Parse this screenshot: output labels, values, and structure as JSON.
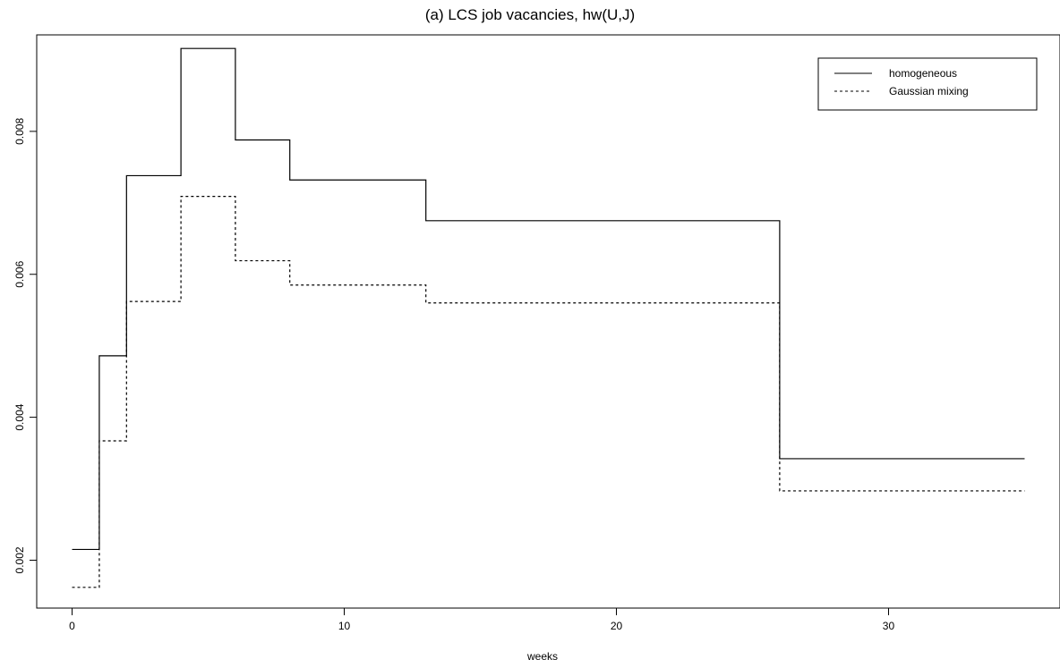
{
  "chart_data": {
    "type": "line",
    "title": "(a) LCS job vacancies, hw(U,J)",
    "xlabel": "weeks",
    "ylabel": "",
    "xlim": [
      -1.3,
      36.3
    ],
    "ylim": [
      0.00133,
      0.00935
    ],
    "x_ticks": [
      0,
      10,
      20,
      30
    ],
    "x_tick_labels": [
      "0",
      "10",
      "20",
      "30"
    ],
    "y_ticks": [
      0.002,
      0.004,
      0.006,
      0.008
    ],
    "y_tick_labels": [
      "0.002",
      "0.004",
      "0.006",
      "0.008"
    ],
    "grid": false,
    "legend_position": "top-right",
    "series": [
      {
        "name": "homogeneous",
        "style": "solid",
        "color": "#000000",
        "steps": [
          {
            "x0": 0,
            "x1": 1,
            "y": 0.00215
          },
          {
            "x0": 1,
            "x1": 2,
            "y": 0.00486
          },
          {
            "x0": 2,
            "x1": 4,
            "y": 0.00738
          },
          {
            "x0": 4,
            "x1": 6,
            "y": 0.00916
          },
          {
            "x0": 6,
            "x1": 8,
            "y": 0.00788
          },
          {
            "x0": 8,
            "x1": 13,
            "y": 0.00732
          },
          {
            "x0": 13,
            "x1": 26,
            "y": 0.00675
          },
          {
            "x0": 26,
            "x1": 35,
            "y": 0.00342
          }
        ]
      },
      {
        "name": "Gaussian mixing",
        "style": "dotted",
        "color": "#000000",
        "steps": [
          {
            "x0": 0,
            "x1": 1,
            "y": 0.00162
          },
          {
            "x0": 1,
            "x1": 2,
            "y": 0.00367
          },
          {
            "x0": 2,
            "x1": 4,
            "y": 0.00562
          },
          {
            "x0": 4,
            "x1": 6,
            "y": 0.00709
          },
          {
            "x0": 6,
            "x1": 8,
            "y": 0.00619
          },
          {
            "x0": 8,
            "x1": 13,
            "y": 0.00585
          },
          {
            "x0": 13,
            "x1": 26,
            "y": 0.0056
          },
          {
            "x0": 26,
            "x1": 35,
            "y": 0.00297
          }
        ]
      }
    ]
  }
}
